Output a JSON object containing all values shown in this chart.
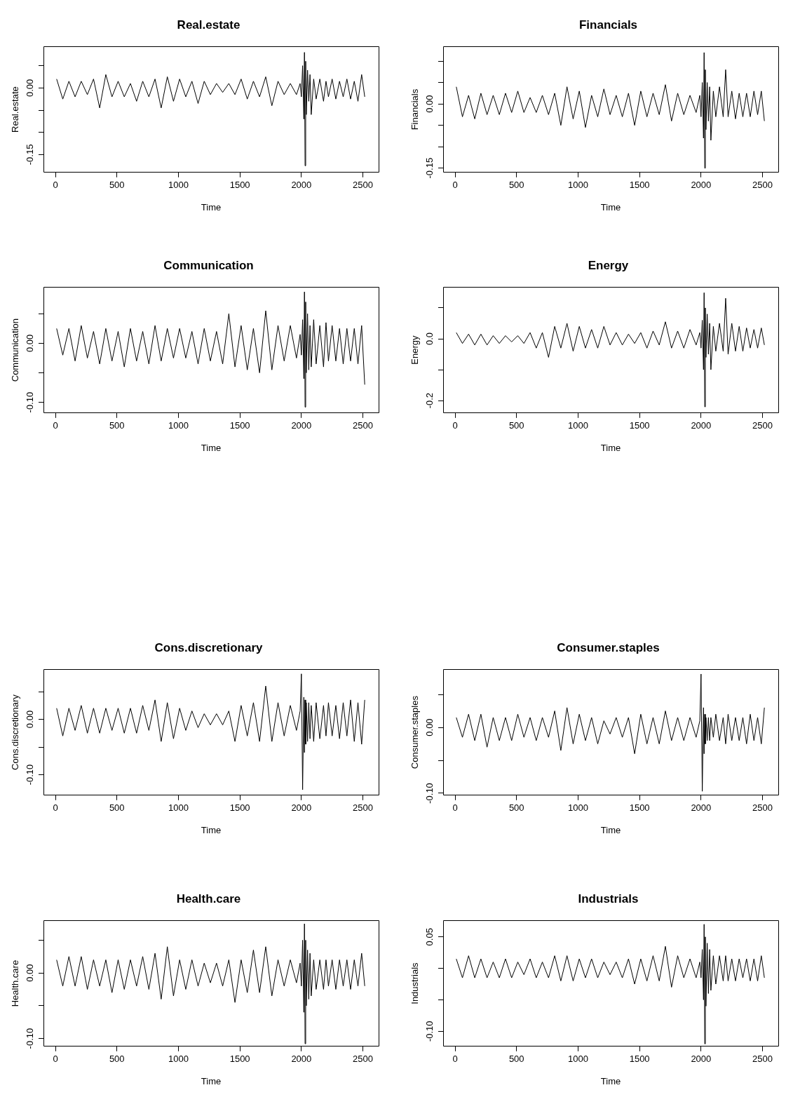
{
  "chart_data": [
    {
      "type": "line",
      "title": "Real.estate",
      "xlabel": "Time",
      "ylabel": "Real.estate",
      "color": "#000000",
      "xlim": [
        -97,
        2628
      ],
      "ylim": [
        -0.19,
        0.093
      ],
      "xticks": [
        0,
        500,
        1000,
        1500,
        2000,
        2500
      ],
      "yticks": [
        {
          "value": 0.05,
          "label": null
        },
        {
          "value": 0,
          "label": "0.00"
        },
        {
          "value": -0.05,
          "label": null
        },
        {
          "value": -0.1,
          "label": null
        },
        {
          "value": -0.15,
          "label": "-0.15"
        }
      ],
      "x": [
        10,
        60,
        110,
        160,
        210,
        260,
        310,
        360,
        410,
        460,
        510,
        560,
        610,
        660,
        710,
        760,
        810,
        860,
        910,
        960,
        1010,
        1060,
        1110,
        1160,
        1210,
        1260,
        1310,
        1360,
        1410,
        1460,
        1510,
        1560,
        1610,
        1660,
        1710,
        1760,
        1810,
        1860,
        1910,
        1960,
        1990,
        2000,
        2010,
        2020,
        2025,
        2030,
        2035,
        2040,
        2050,
        2060,
        2070,
        2080,
        2100,
        2120,
        2150,
        2180,
        2200,
        2220,
        2250,
        2280,
        2310,
        2340,
        2370,
        2400,
        2430,
        2460,
        2490,
        2515
      ],
      "values": [
        0.02,
        -0.025,
        0.015,
        -0.02,
        0.015,
        -0.015,
        0.02,
        -0.045,
        0.03,
        -0.02,
        0.015,
        -0.02,
        0.01,
        -0.03,
        0.015,
        -0.02,
        0.02,
        -0.045,
        0.025,
        -0.03,
        0.02,
        -0.02,
        0.015,
        -0.035,
        0.015,
        -0.015,
        0.01,
        -0.01,
        0.01,
        -0.015,
        0.02,
        -0.025,
        0.015,
        -0.02,
        0.025,
        -0.04,
        0.015,
        -0.015,
        0.01,
        -0.015,
        0.01,
        -0.02,
        0.05,
        -0.07,
        0.08,
        -0.175,
        0.06,
        -0.06,
        0.04,
        -0.03,
        0.03,
        -0.06,
        0.02,
        -0.025,
        0.02,
        -0.03,
        0.015,
        -0.02,
        0.02,
        -0.025,
        0.015,
        -0.02,
        0.02,
        -0.025,
        0.015,
        -0.03,
        0.03,
        -0.02
      ]
    },
    {
      "type": "line",
      "title": "Financials",
      "xlabel": "Time",
      "ylabel": "Financials",
      "color": "#000000",
      "xlim": [
        -97,
        2628
      ],
      "ylim": [
        -0.16,
        0.134
      ],
      "xticks": [
        0,
        500,
        1000,
        1500,
        2000,
        2500
      ],
      "yticks": [
        {
          "value": 0.1,
          "label": null
        },
        {
          "value": 0.05,
          "label": null
        },
        {
          "value": 0,
          "label": "0.00"
        },
        {
          "value": -0.05,
          "label": null
        },
        {
          "value": -0.1,
          "label": null
        },
        {
          "value": -0.15,
          "label": "-0.15"
        }
      ],
      "x": [
        10,
        60,
        110,
        160,
        210,
        260,
        310,
        360,
        410,
        460,
        510,
        560,
        610,
        660,
        710,
        760,
        810,
        860,
        910,
        960,
        1010,
        1060,
        1110,
        1160,
        1210,
        1260,
        1310,
        1360,
        1410,
        1460,
        1510,
        1560,
        1610,
        1660,
        1710,
        1760,
        1810,
        1860,
        1910,
        1960,
        1990,
        2000,
        2010,
        2020,
        2025,
        2030,
        2035,
        2040,
        2050,
        2060,
        2070,
        2080,
        2100,
        2120,
        2150,
        2180,
        2200,
        2220,
        2250,
        2280,
        2310,
        2340,
        2370,
        2400,
        2430,
        2460,
        2490,
        2515
      ],
      "values": [
        0.04,
        -0.03,
        0.02,
        -0.035,
        0.025,
        -0.025,
        0.02,
        -0.025,
        0.025,
        -0.02,
        0.03,
        -0.02,
        0.015,
        -0.02,
        0.02,
        -0.025,
        0.025,
        -0.05,
        0.04,
        -0.035,
        0.03,
        -0.055,
        0.02,
        -0.03,
        0.035,
        -0.025,
        0.02,
        -0.03,
        0.025,
        -0.05,
        0.03,
        -0.03,
        0.025,
        -0.025,
        0.045,
        -0.04,
        0.025,
        -0.025,
        0.02,
        -0.02,
        0.02,
        -0.03,
        0.05,
        -0.08,
        0.12,
        -0.15,
        0.08,
        -0.06,
        0.05,
        -0.04,
        0.04,
        -0.085,
        0.03,
        -0.03,
        0.04,
        -0.03,
        0.08,
        -0.03,
        0.03,
        -0.035,
        0.025,
        -0.03,
        0.025,
        -0.03,
        0.03,
        -0.025,
        0.03,
        -0.04
      ]
    },
    {
      "type": "line",
      "title": "Communication",
      "xlabel": "Time",
      "ylabel": "Communication",
      "color": "#000000",
      "xlim": [
        -97,
        2628
      ],
      "ylim": [
        -0.118,
        0.095
      ],
      "xticks": [
        0,
        500,
        1000,
        1500,
        2000,
        2500
      ],
      "yticks": [
        {
          "value": 0.05,
          "label": null
        },
        {
          "value": 0,
          "label": "0.00"
        },
        {
          "value": -0.05,
          "label": null
        },
        {
          "value": -0.1,
          "label": "-0.10"
        }
      ],
      "x": [
        10,
        60,
        110,
        160,
        210,
        260,
        310,
        360,
        410,
        460,
        510,
        560,
        610,
        660,
        710,
        760,
        810,
        860,
        910,
        960,
        1010,
        1060,
        1110,
        1160,
        1210,
        1260,
        1310,
        1360,
        1410,
        1460,
        1510,
        1560,
        1610,
        1660,
        1710,
        1760,
        1810,
        1860,
        1910,
        1960,
        1990,
        2000,
        2010,
        2020,
        2025,
        2030,
        2035,
        2040,
        2050,
        2060,
        2070,
        2080,
        2100,
        2120,
        2150,
        2180,
        2200,
        2220,
        2250,
        2280,
        2310,
        2340,
        2370,
        2400,
        2430,
        2460,
        2490,
        2515
      ],
      "values": [
        0.025,
        -0.02,
        0.025,
        -0.03,
        0.03,
        -0.025,
        0.02,
        -0.035,
        0.025,
        -0.03,
        0.02,
        -0.04,
        0.025,
        -0.03,
        0.02,
        -0.035,
        0.03,
        -0.03,
        0.025,
        -0.025,
        0.025,
        -0.025,
        0.02,
        -0.035,
        0.025,
        -0.03,
        0.02,
        -0.035,
        0.05,
        -0.04,
        0.03,
        -0.045,
        0.025,
        -0.05,
        0.055,
        -0.045,
        0.03,
        -0.03,
        0.03,
        -0.025,
        0.015,
        -0.02,
        0.04,
        -0.06,
        0.087,
        -0.108,
        0.07,
        -0.05,
        0.05,
        -0.045,
        0.03,
        -0.04,
        0.04,
        -0.035,
        0.03,
        -0.04,
        0.035,
        -0.03,
        0.03,
        -0.03,
        0.025,
        -0.035,
        0.025,
        -0.03,
        0.025,
        -0.035,
        0.03,
        -0.07
      ]
    },
    {
      "type": "line",
      "title": "Energy",
      "xlabel": "Time",
      "ylabel": "Energy",
      "color": "#000000",
      "xlim": [
        -97,
        2628
      ],
      "ylim": [
        -0.24,
        0.167
      ],
      "xticks": [
        0,
        500,
        1000,
        1500,
        2000,
        2500
      ],
      "yticks": [
        {
          "value": 0.1,
          "label": null
        },
        {
          "value": 0,
          "label": "0.0"
        },
        {
          "value": -0.1,
          "label": null
        },
        {
          "value": -0.2,
          "label": "-0.2"
        }
      ],
      "x": [
        10,
        60,
        110,
        160,
        210,
        260,
        310,
        360,
        410,
        460,
        510,
        560,
        610,
        660,
        710,
        760,
        810,
        860,
        910,
        960,
        1010,
        1060,
        1110,
        1160,
        1210,
        1260,
        1310,
        1360,
        1410,
        1460,
        1510,
        1560,
        1610,
        1660,
        1710,
        1760,
        1810,
        1860,
        1910,
        1960,
        1990,
        2000,
        2010,
        2020,
        2025,
        2030,
        2035,
        2040,
        2050,
        2060,
        2070,
        2080,
        2100,
        2120,
        2150,
        2180,
        2200,
        2220,
        2250,
        2280,
        2310,
        2340,
        2370,
        2400,
        2430,
        2460,
        2490,
        2515
      ],
      "values": [
        0.02,
        -0.015,
        0.015,
        -0.02,
        0.015,
        -0.02,
        0.01,
        -0.015,
        0.01,
        -0.01,
        0.01,
        -0.015,
        0.02,
        -0.03,
        0.02,
        -0.06,
        0.04,
        -0.03,
        0.05,
        -0.04,
        0.04,
        -0.03,
        0.03,
        -0.03,
        0.04,
        -0.02,
        0.02,
        -0.02,
        0.015,
        -0.015,
        0.02,
        -0.03,
        0.025,
        -0.02,
        0.055,
        -0.03,
        0.025,
        -0.03,
        0.03,
        -0.02,
        0.02,
        -0.03,
        0.06,
        -0.1,
        0.149,
        -0.22,
        0.1,
        -0.06,
        0.08,
        -0.05,
        0.05,
        -0.1,
        0.04,
        -0.04,
        0.05,
        -0.04,
        0.131,
        -0.05,
        0.05,
        -0.04,
        0.04,
        -0.04,
        0.035,
        -0.03,
        0.03,
        -0.03,
        0.035,
        -0.02
      ]
    },
    {
      "type": "line",
      "title": "Cons.discretionary",
      "xlabel": "Time",
      "ylabel": "Cons.discretionary",
      "color": "#000000",
      "xlim": [
        -97,
        2628
      ],
      "ylim": [
        -0.137,
        0.09
      ],
      "xticks": [
        0,
        500,
        1000,
        1500,
        2000,
        2500
      ],
      "yticks": [
        {
          "value": 0.05,
          "label": null
        },
        {
          "value": 0,
          "label": "0.00"
        },
        {
          "value": -0.05,
          "label": null
        },
        {
          "value": -0.1,
          "label": "-0.10"
        }
      ],
      "x": [
        10,
        60,
        110,
        160,
        210,
        260,
        310,
        360,
        410,
        460,
        510,
        560,
        610,
        660,
        710,
        760,
        810,
        860,
        910,
        960,
        1010,
        1060,
        1110,
        1160,
        1210,
        1260,
        1310,
        1360,
        1410,
        1460,
        1510,
        1560,
        1610,
        1660,
        1710,
        1760,
        1810,
        1860,
        1910,
        1960,
        1990,
        2000,
        2010,
        2020,
        2025,
        2030,
        2035,
        2040,
        2050,
        2060,
        2070,
        2080,
        2100,
        2120,
        2150,
        2180,
        2200,
        2220,
        2250,
        2280,
        2310,
        2340,
        2370,
        2400,
        2430,
        2460,
        2490,
        2515
      ],
      "values": [
        0.02,
        -0.03,
        0.02,
        -0.02,
        0.025,
        -0.025,
        0.02,
        -0.025,
        0.02,
        -0.02,
        0.02,
        -0.025,
        0.02,
        -0.025,
        0.025,
        -0.02,
        0.035,
        -0.04,
        0.03,
        -0.035,
        0.02,
        -0.02,
        0.015,
        -0.015,
        0.01,
        -0.01,
        0.01,
        -0.01,
        0.015,
        -0.04,
        0.025,
        -0.03,
        0.03,
        -0.04,
        0.06,
        -0.04,
        0.03,
        -0.03,
        0.025,
        -0.02,
        0.015,
        0.082,
        -0.127,
        0.04,
        -0.06,
        0.035,
        -0.045,
        0.03,
        -0.04,
        0.03,
        -0.035,
        0.025,
        -0.04,
        0.03,
        -0.035,
        0.025,
        -0.03,
        0.03,
        -0.03,
        0.025,
        -0.035,
        0.03,
        -0.03,
        0.035,
        -0.04,
        0.03,
        -0.045,
        0.035
      ]
    },
    {
      "type": "line",
      "title": "Consumer.staples",
      "xlabel": "Time",
      "ylabel": "Consumer.staples",
      "color": "#000000",
      "xlim": [
        -97,
        2628
      ],
      "ylim": [
        -0.103,
        0.088
      ],
      "xticks": [
        0,
        500,
        1000,
        1500,
        2000,
        2500
      ],
      "yticks": [
        {
          "value": 0.05,
          "label": null
        },
        {
          "value": 0,
          "label": "0.00"
        },
        {
          "value": -0.05,
          "label": null
        },
        {
          "value": -0.1,
          "label": "-0.10"
        }
      ],
      "x": [
        10,
        60,
        110,
        160,
        210,
        260,
        310,
        360,
        410,
        460,
        510,
        560,
        610,
        660,
        710,
        760,
        810,
        860,
        910,
        960,
        1010,
        1060,
        1110,
        1160,
        1210,
        1260,
        1310,
        1360,
        1410,
        1460,
        1510,
        1560,
        1610,
        1660,
        1710,
        1760,
        1810,
        1860,
        1910,
        1960,
        1990,
        2000,
        2010,
        2020,
        2025,
        2030,
        2035,
        2040,
        2050,
        2060,
        2070,
        2080,
        2100,
        2120,
        2150,
        2180,
        2200,
        2220,
        2250,
        2280,
        2310,
        2340,
        2370,
        2400,
        2430,
        2460,
        2490,
        2515
      ],
      "values": [
        0.015,
        -0.015,
        0.02,
        -0.02,
        0.02,
        -0.03,
        0.015,
        -0.02,
        0.015,
        -0.02,
        0.02,
        -0.015,
        0.015,
        -0.02,
        0.015,
        -0.015,
        0.025,
        -0.035,
        0.03,
        -0.025,
        0.02,
        -0.02,
        0.015,
        -0.025,
        0.01,
        -0.01,
        0.015,
        -0.015,
        0.015,
        -0.04,
        0.02,
        -0.025,
        0.015,
        -0.025,
        0.025,
        -0.02,
        0.015,
        -0.02,
        0.015,
        -0.015,
        0.01,
        0.081,
        -0.097,
        0.03,
        -0.04,
        0.02,
        -0.025,
        0.015,
        -0.02,
        0.015,
        -0.02,
        0.015,
        -0.015,
        0.02,
        -0.02,
        0.015,
        -0.025,
        0.02,
        -0.02,
        0.015,
        -0.02,
        0.015,
        -0.025,
        0.02,
        -0.02,
        0.015,
        -0.025,
        0.03
      ]
    },
    {
      "type": "line",
      "title": "Health.care",
      "xlabel": "Time",
      "ylabel": "Health.care",
      "color": "#000000",
      "xlim": [
        -97,
        2628
      ],
      "ylim": [
        -0.112,
        0.08
      ],
      "xticks": [
        0,
        500,
        1000,
        1500,
        2000,
        2500
      ],
      "yticks": [
        {
          "value": 0.05,
          "label": null
        },
        {
          "value": 0,
          "label": "0.00"
        },
        {
          "value": -0.05,
          "label": null
        },
        {
          "value": -0.1,
          "label": "-0.10"
        }
      ],
      "x": [
        10,
        60,
        110,
        160,
        210,
        260,
        310,
        360,
        410,
        460,
        510,
        560,
        610,
        660,
        710,
        760,
        810,
        860,
        910,
        960,
        1010,
        1060,
        1110,
        1160,
        1210,
        1260,
        1310,
        1360,
        1410,
        1460,
        1510,
        1560,
        1610,
        1660,
        1710,
        1760,
        1810,
        1860,
        1910,
        1960,
        1990,
        2000,
        2010,
        2020,
        2025,
        2030,
        2035,
        2040,
        2050,
        2060,
        2070,
        2080,
        2100,
        2120,
        2150,
        2180,
        2200,
        2220,
        2250,
        2280,
        2310,
        2340,
        2370,
        2400,
        2430,
        2460,
        2490,
        2515
      ],
      "values": [
        0.02,
        -0.02,
        0.025,
        -0.02,
        0.025,
        -0.025,
        0.02,
        -0.02,
        0.02,
        -0.03,
        0.02,
        -0.025,
        0.02,
        -0.02,
        0.025,
        -0.025,
        0.03,
        -0.04,
        0.04,
        -0.035,
        0.02,
        -0.025,
        0.02,
        -0.02,
        0.015,
        -0.015,
        0.015,
        -0.02,
        0.02,
        -0.045,
        0.02,
        -0.03,
        0.035,
        -0.03,
        0.04,
        -0.035,
        0.02,
        -0.02,
        0.02,
        -0.015,
        0.015,
        -0.02,
        0.05,
        -0.06,
        0.075,
        -0.108,
        0.05,
        -0.05,
        0.035,
        -0.04,
        0.03,
        -0.035,
        0.02,
        -0.025,
        0.02,
        -0.025,
        0.02,
        -0.02,
        0.02,
        -0.025,
        0.02,
        -0.02,
        0.02,
        -0.025,
        0.02,
        -0.02,
        0.03,
        -0.02
      ]
    },
    {
      "type": "line",
      "title": "Industrials",
      "xlabel": "Time",
      "ylabel": "Industrials",
      "color": "#000000",
      "xlim": [
        -97,
        2628
      ],
      "ylim": [
        -0.124,
        0.076
      ],
      "xticks": [
        0,
        500,
        1000,
        1500,
        2000,
        2500
      ],
      "yticks": [
        {
          "value": 0.05,
          "label": "0.05"
        },
        {
          "value": 0,
          "label": null
        },
        {
          "value": -0.05,
          "label": null
        },
        {
          "value": -0.1,
          "label": "-0.10"
        }
      ],
      "x": [
        10,
        60,
        110,
        160,
        210,
        260,
        310,
        360,
        410,
        460,
        510,
        560,
        610,
        660,
        710,
        760,
        810,
        860,
        910,
        960,
        1010,
        1060,
        1110,
        1160,
        1210,
        1260,
        1310,
        1360,
        1410,
        1460,
        1510,
        1560,
        1610,
        1660,
        1710,
        1760,
        1810,
        1860,
        1910,
        1960,
        1990,
        2000,
        2010,
        2020,
        2025,
        2030,
        2035,
        2040,
        2050,
        2060,
        2070,
        2080,
        2100,
        2120,
        2150,
        2180,
        2200,
        2220,
        2250,
        2280,
        2310,
        2340,
        2370,
        2400,
        2430,
        2460,
        2490,
        2515
      ],
      "values": [
        0.015,
        -0.015,
        0.02,
        -0.015,
        0.015,
        -0.015,
        0.01,
        -0.015,
        0.015,
        -0.015,
        0.01,
        -0.01,
        0.015,
        -0.015,
        0.01,
        -0.015,
        0.02,
        -0.02,
        0.02,
        -0.02,
        0.015,
        -0.015,
        0.015,
        -0.015,
        0.01,
        -0.01,
        0.01,
        -0.015,
        0.015,
        -0.025,
        0.015,
        -0.02,
        0.02,
        -0.02,
        0.035,
        -0.03,
        0.02,
        -0.015,
        0.015,
        -0.015,
        0.01,
        -0.015,
        0.03,
        -0.05,
        0.07,
        -0.12,
        0.05,
        -0.06,
        0.04,
        -0.04,
        0.03,
        -0.035,
        0.02,
        -0.025,
        0.02,
        -0.02,
        0.02,
        -0.02,
        0.015,
        -0.02,
        0.015,
        -0.015,
        0.015,
        -0.02,
        0.015,
        -0.02,
        0.02,
        -0.015
      ]
    }
  ]
}
